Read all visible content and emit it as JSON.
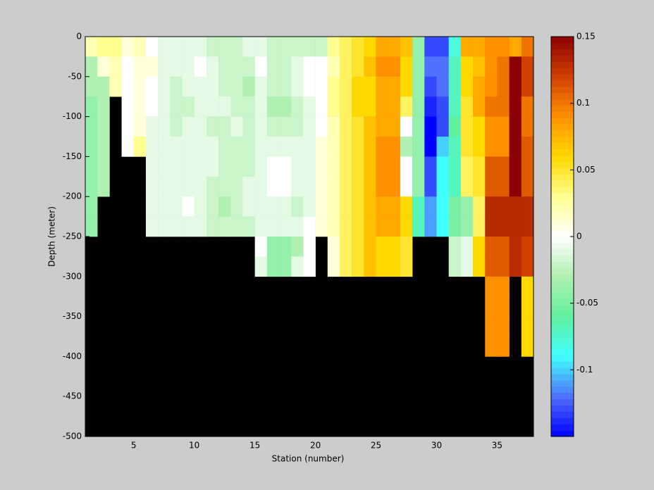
{
  "chart_data": {
    "type": "heatmap",
    "x_label": "Station (number)",
    "y_label": "Depth (meter)",
    "xlim": [
      1,
      38
    ],
    "ylim": [
      -500,
      0
    ],
    "xticks": [
      5,
      10,
      15,
      20,
      25,
      30,
      35
    ],
    "yticks": [
      0,
      -50,
      -100,
      -150,
      -200,
      -250,
      -300,
      -350,
      -400,
      -450,
      -500
    ],
    "clim": [
      -0.15,
      0.15
    ],
    "cticks": [
      -0.1,
      -0.05,
      0,
      0.05,
      0.1,
      0.15
    ],
    "colormap": [
      "#0000ff",
      "#5070ff",
      "#40ffff",
      "#60f0a0",
      "#b0f0b0",
      "#ffffff",
      "#ffff90",
      "#ffd800",
      "#ff9000",
      "#d04000",
      "#8b0000"
    ],
    "background": "#000000",
    "x": [
      1,
      2,
      3,
      4,
      5,
      6,
      7,
      8,
      9,
      10,
      11,
      12,
      13,
      14,
      15,
      16,
      17,
      18,
      19,
      20,
      21,
      22,
      23,
      24,
      25,
      26,
      27,
      28,
      29,
      30,
      31,
      32,
      33,
      34,
      35,
      36,
      37
    ],
    "y": [
      0,
      -25,
      -50,
      -75,
      -100,
      -125,
      -150,
      -175,
      -200,
      -225,
      -250,
      -275,
      -300,
      -325,
      -350,
      -375
    ],
    "values": [
      [
        0.02,
        -0.03,
        -0.03,
        -0.04,
        -0.04,
        -0.04,
        -0.04,
        -0.04,
        -0.04,
        -0.04,
        null,
        null,
        null,
        null,
        null,
        null
      ],
      [
        0.03,
        0.01,
        -0.03,
        -0.03,
        -0.03,
        -0.03,
        -0.03,
        -0.03,
        null,
        null,
        null,
        null,
        null,
        null,
        null,
        null
      ],
      [
        0.03,
        0.02,
        0.02,
        null,
        null,
        null,
        null,
        null,
        null,
        null,
        null,
        null,
        null,
        null,
        null,
        null
      ],
      [
        0.01,
        0,
        0,
        0,
        0,
        0,
        null,
        null,
        null,
        null,
        null,
        null,
        null,
        null,
        null,
        null
      ],
      [
        0.02,
        0.01,
        0.01,
        0.01,
        0.01,
        0.03,
        null,
        null,
        null,
        null,
        null,
        null,
        null,
        null,
        null,
        null
      ],
      [
        0,
        0.01,
        0,
        0,
        -0.01,
        -0.01,
        -0.01,
        -0.01,
        -0.01,
        -0.01,
        null,
        null,
        null,
        null,
        null,
        null
      ],
      [
        -0.01,
        -0.01,
        -0.01,
        -0.01,
        -0.01,
        -0.01,
        -0.01,
        -0.01,
        -0.01,
        -0.01,
        null,
        null,
        null,
        null,
        null,
        null
      ],
      [
        -0.01,
        -0.01,
        -0.02,
        -0.02,
        -0.02,
        -0.01,
        -0.01,
        -0.01,
        -0.01,
        -0.01,
        null,
        null,
        null,
        null,
        null,
        null
      ],
      [
        -0.01,
        -0.01,
        -0.01,
        -0.02,
        -0.01,
        -0.01,
        -0.01,
        -0.01,
        0,
        -0.01,
        null,
        null,
        null,
        null,
        null,
        null
      ],
      [
        -0.01,
        0,
        -0.01,
        -0.01,
        -0.01,
        -0.01,
        -0.01,
        -0.01,
        -0.01,
        -0.01,
        null,
        null,
        null,
        null,
        null,
        null
      ],
      [
        -0.02,
        -0.01,
        -0.01,
        -0.01,
        -0.02,
        -0.01,
        -0.01,
        -0.02,
        -0.02,
        -0.02,
        null,
        null,
        null,
        null,
        null,
        null
      ],
      [
        -0.02,
        -0.02,
        -0.02,
        -0.01,
        -0.02,
        -0.02,
        -0.02,
        -0.02,
        -0.03,
        -0.02,
        null,
        null,
        null,
        null,
        null,
        null
      ],
      [
        -0.02,
        -0.02,
        -0.02,
        -0.02,
        -0.01,
        -0.02,
        -0.02,
        -0.02,
        -0.02,
        -0.02,
        null,
        null,
        null,
        null,
        null,
        null
      ],
      [
        -0.01,
        -0.02,
        -0.03,
        -0.02,
        -0.02,
        -0.02,
        -0.02,
        -0.01,
        -0.01,
        -0.02,
        null,
        null,
        null,
        null,
        null,
        null
      ],
      [
        -0.01,
        0,
        -0.01,
        -0.01,
        -0.01,
        -0.01,
        -0.01,
        -0.01,
        -0.01,
        -0.01,
        0,
        -0.01,
        null,
        null,
        null,
        null
      ],
      [
        -0.02,
        -0.02,
        -0.02,
        -0.03,
        -0.02,
        -0.01,
        0,
        0,
        -0.01,
        -0.01,
        -0.04,
        -0.04,
        null,
        null,
        null,
        null
      ],
      [
        -0.02,
        -0.02,
        -0.02,
        -0.03,
        -0.02,
        -0.01,
        0,
        0,
        -0.01,
        -0.01,
        -0.04,
        -0.04,
        null,
        null,
        null,
        null
      ],
      [
        -0.02,
        -0.01,
        -0.01,
        -0.02,
        -0.02,
        -0.01,
        -0.01,
        -0.01,
        -0.02,
        -0.01,
        -0.03,
        -0.01,
        null,
        null,
        null,
        null
      ],
      [
        -0.02,
        0,
        0,
        -0.01,
        -0.01,
        -0.01,
        -0.01,
        -0.01,
        -0.01,
        0,
        0,
        0,
        null,
        null,
        null,
        null
      ],
      [
        -0.02,
        0,
        0,
        0,
        0,
        0.01,
        0.01,
        0.01,
        0.01,
        0.01,
        null,
        null,
        null,
        null,
        null,
        null
      ],
      [
        0.03,
        0.02,
        0.03,
        0.03,
        0.02,
        0.02,
        0.02,
        0.02,
        0.02,
        0.02,
        0.01,
        0.01,
        null,
        null,
        null,
        null
      ],
      [
        0.04,
        0.04,
        0.04,
        0.04,
        0.04,
        0.04,
        0.04,
        0.04,
        0.04,
        0.04,
        0.04,
        0.04,
        null,
        null,
        null,
        null
      ],
      [
        0.05,
        0.05,
        0.06,
        0.06,
        0.05,
        0.05,
        0.05,
        0.05,
        0.05,
        0.05,
        0.05,
        0.05,
        null,
        null,
        null,
        null
      ],
      [
        0.06,
        0.07,
        0.06,
        0.06,
        0.07,
        0.07,
        0.07,
        0.07,
        0.07,
        0.07,
        0.07,
        0.07,
        null,
        null,
        null,
        null
      ],
      [
        0.08,
        0.09,
        0.08,
        0.08,
        0.08,
        0.09,
        0.09,
        0.09,
        0.08,
        0.08,
        0.06,
        0.06,
        null,
        null,
        null,
        null
      ],
      [
        0.08,
        0.09,
        0.08,
        0.08,
        0.08,
        0.09,
        0.09,
        0.09,
        0.08,
        0.08,
        0.06,
        0.06,
        null,
        null,
        null,
        null
      ],
      [
        0.07,
        0.06,
        0.06,
        0.04,
        0,
        -0.03,
        0,
        0,
        0.06,
        0.06,
        0.05,
        0.05,
        null,
        null,
        null,
        null
      ],
      [
        -0.04,
        -0.04,
        -0.04,
        -0.04,
        -0.04,
        -0.04,
        -0.04,
        -0.04,
        -0.07,
        -0.07,
        null,
        null,
        null,
        null,
        null,
        null
      ],
      [
        -0.13,
        -0.12,
        -0.13,
        -0.14,
        -0.15,
        -0.15,
        -0.13,
        -0.13,
        -0.11,
        -0.11,
        null,
        null,
        null,
        null,
        null,
        null
      ],
      [
        -0.13,
        -0.12,
        -0.12,
        -0.13,
        -0.13,
        -0.1,
        -0.09,
        -0.09,
        -0.09,
        -0.09,
        null,
        null,
        null,
        null,
        null,
        null
      ],
      [
        -0.08,
        -0.07,
        -0.07,
        -0.07,
        -0.06,
        -0.07,
        -0.07,
        -0.07,
        -0.05,
        -0.05,
        -0.02,
        -0.02,
        null,
        null,
        null,
        null
      ],
      [
        0.08,
        0.06,
        0.06,
        0.05,
        0.05,
        0.05,
        0.04,
        0.04,
        -0.04,
        -0.04,
        -0.01,
        -0.01,
        null,
        null,
        null,
        null
      ],
      [
        0.08,
        0.07,
        0.08,
        0.08,
        0.06,
        0.06,
        0.05,
        0.05,
        0.04,
        0.04,
        0.06,
        0.06,
        null,
        null,
        null,
        null
      ],
      [
        0.09,
        0.09,
        0.09,
        0.1,
        0.09,
        0.09,
        0.11,
        0.11,
        0.13,
        0.13,
        0.11,
        0.11,
        0.09,
        0.09,
        0.09,
        0.09
      ],
      [
        0.09,
        0.1,
        0.1,
        0.1,
        0.09,
        0.09,
        0.11,
        0.11,
        0.13,
        0.13,
        0.11,
        0.11,
        0.09,
        0.09,
        0.09,
        0.09
      ],
      [
        0.08,
        0.15,
        0.15,
        0.15,
        0.15,
        0.15,
        0.15,
        0.15,
        0.13,
        0.13,
        0.13,
        0.13,
        null,
        null,
        null,
        null
      ],
      [
        0.1,
        0.12,
        0.12,
        0.1,
        0.1,
        0.11,
        0.11,
        0.11,
        0.13,
        0.13,
        0.12,
        0.12,
        0.06,
        0.06,
        0.06,
        0.06
      ]
    ]
  }
}
